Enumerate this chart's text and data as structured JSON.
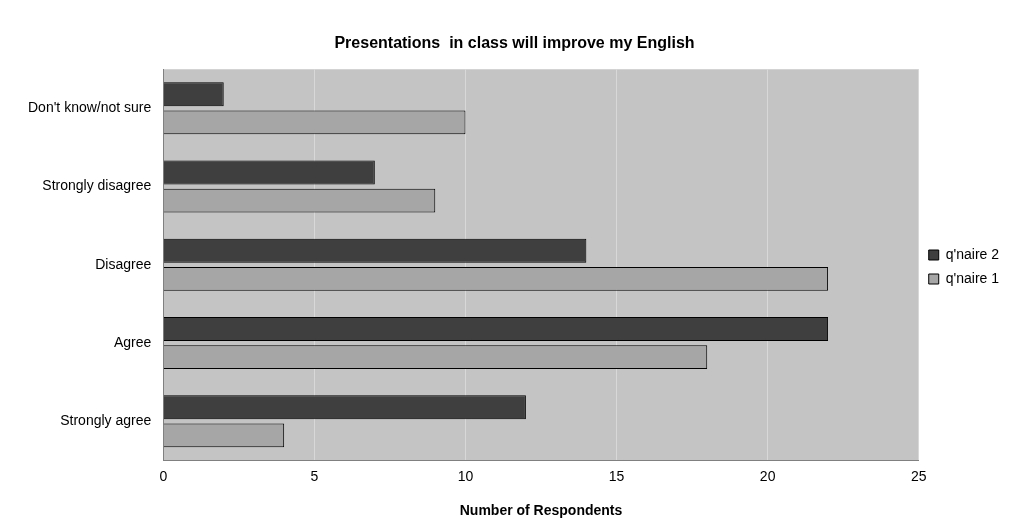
{
  "chart_data": {
    "type": "bar",
    "orientation": "horizontal",
    "title": "Presentations  in class will improve my English",
    "xlabel": "Number of Respondents",
    "categories": [
      "Don't know/not sure",
      "Strongly disagree",
      "Disagree",
      "Agree",
      "Strongly agree"
    ],
    "series": [
      {
        "name": "q'naire 2",
        "color": "#3f3f3f",
        "values": [
          2,
          7,
          14,
          22,
          12
        ]
      },
      {
        "name": "q'naire 1",
        "color": "#a6a6a6",
        "values": [
          10,
          9,
          22,
          18,
          4
        ]
      }
    ],
    "xlim": [
      0,
      25
    ],
    "xticks": [
      0,
      5,
      10,
      15,
      20,
      25
    ],
    "grid": "x",
    "legend": "right"
  }
}
